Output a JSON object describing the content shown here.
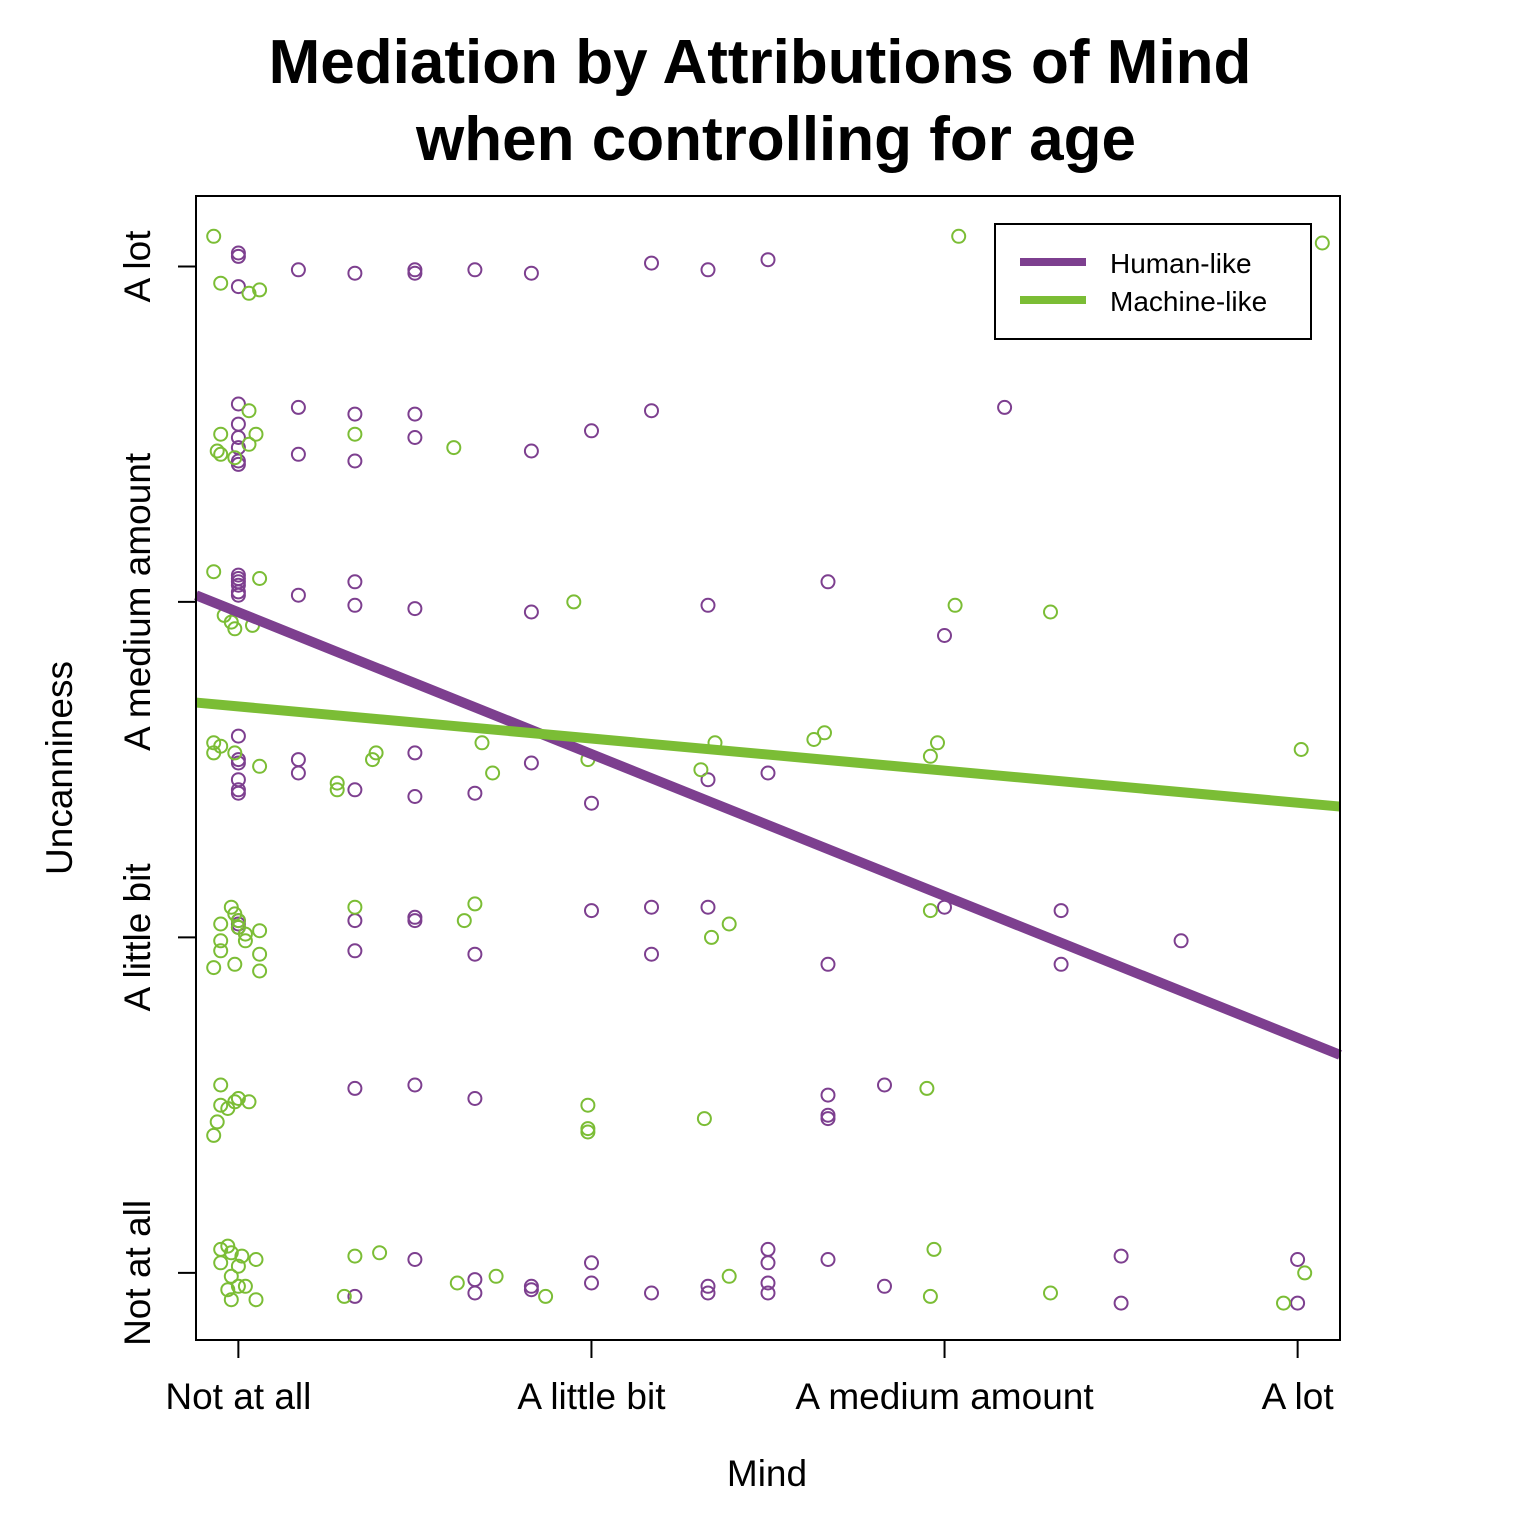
{
  "chart_data": {
    "type": "scatter",
    "title_lines": [
      "Mediation by Attributions of Mind",
      "when controlling for age"
    ],
    "xlabel": "Mind",
    "ylabel": "Uncanniness",
    "x_ticks": [
      "Not at all",
      "A little bit",
      "A medium amount",
      "A lot"
    ],
    "y_ticks": [
      "Not at all",
      "A little bit",
      "A medium amount",
      "A lot"
    ],
    "xlim": [
      0.88,
      4.12
    ],
    "ylim": [
      0.8,
      4.21
    ],
    "grid": false,
    "legend_position": "top-right",
    "colors": {
      "human": "#7d3f8f",
      "machine": "#7bbd35"
    },
    "series": [
      {
        "name": "Human-like",
        "fit_line": [
          [
            0.88,
            3.02
          ],
          [
            4.12,
            1.65
          ]
        ],
        "points": [
          [
            1.0,
            4.04
          ],
          [
            1.0,
            4.03
          ],
          [
            1.0,
            3.94
          ],
          [
            1.17,
            3.99
          ],
          [
            1.33,
            3.98
          ],
          [
            1.5,
            3.99
          ],
          [
            1.5,
            3.98
          ],
          [
            1.67,
            3.99
          ],
          [
            1.83,
            3.98
          ],
          [
            2.17,
            4.01
          ],
          [
            2.33,
            3.99
          ],
          [
            2.5,
            4.02
          ],
          [
            1.0,
            3.59
          ],
          [
            1.0,
            3.53
          ],
          [
            1.0,
            3.49
          ],
          [
            1.0,
            3.46
          ],
          [
            1.0,
            3.42
          ],
          [
            1.0,
            3.41
          ],
          [
            1.17,
            3.58
          ],
          [
            1.17,
            3.44
          ],
          [
            1.33,
            3.56
          ],
          [
            1.33,
            3.42
          ],
          [
            1.5,
            3.56
          ],
          [
            1.5,
            3.49
          ],
          [
            1.83,
            3.45
          ],
          [
            2.0,
            3.51
          ],
          [
            2.17,
            3.57
          ],
          [
            3.17,
            3.58
          ],
          [
            1.0,
            3.08
          ],
          [
            1.0,
            3.07
          ],
          [
            1.0,
            3.06
          ],
          [
            1.0,
            3.05
          ],
          [
            1.0,
            3.03
          ],
          [
            1.0,
            3.02
          ],
          [
            1.17,
            3.02
          ],
          [
            1.33,
            3.06
          ],
          [
            1.33,
            2.99
          ],
          [
            1.5,
            2.98
          ],
          [
            1.83,
            2.97
          ],
          [
            2.33,
            2.99
          ],
          [
            2.67,
            3.06
          ],
          [
            3.0,
            2.9
          ],
          [
            1.0,
            2.6
          ],
          [
            1.0,
            2.53
          ],
          [
            1.0,
            2.52
          ],
          [
            1.0,
            2.47
          ],
          [
            1.0,
            2.44
          ],
          [
            1.0,
            2.43
          ],
          [
            1.17,
            2.53
          ],
          [
            1.17,
            2.49
          ],
          [
            1.33,
            2.44
          ],
          [
            1.5,
            2.55
          ],
          [
            1.5,
            2.42
          ],
          [
            1.67,
            2.43
          ],
          [
            1.83,
            2.52
          ],
          [
            2.0,
            2.4
          ],
          [
            2.33,
            2.47
          ],
          [
            2.5,
            2.49
          ],
          [
            1.0,
            2.05
          ],
          [
            1.0,
            2.04
          ],
          [
            1.0,
            2.03
          ],
          [
            1.33,
            2.05
          ],
          [
            1.33,
            1.96
          ],
          [
            1.5,
            2.06
          ],
          [
            1.5,
            2.05
          ],
          [
            1.67,
            1.95
          ],
          [
            2.0,
            2.08
          ],
          [
            2.17,
            2.09
          ],
          [
            2.17,
            1.95
          ],
          [
            2.33,
            2.09
          ],
          [
            2.67,
            1.92
          ],
          [
            3.0,
            2.09
          ],
          [
            3.33,
            2.08
          ],
          [
            3.33,
            1.92
          ],
          [
            3.67,
            1.99
          ],
          [
            1.33,
            1.55
          ],
          [
            1.5,
            1.56
          ],
          [
            1.67,
            1.52
          ],
          [
            2.67,
            1.53
          ],
          [
            2.67,
            1.47
          ],
          [
            2.67,
            1.46
          ],
          [
            2.83,
            1.56
          ],
          [
            1.5,
            1.04
          ],
          [
            1.67,
            0.98
          ],
          [
            1.67,
            0.94
          ],
          [
            1.83,
            0.96
          ],
          [
            1.83,
            0.95
          ],
          [
            2.0,
            1.03
          ],
          [
            2.0,
            0.97
          ],
          [
            2.17,
            0.94
          ],
          [
            2.33,
            0.96
          ],
          [
            2.33,
            0.94
          ],
          [
            2.5,
            1.07
          ],
          [
            2.5,
            1.03
          ],
          [
            2.5,
            0.97
          ],
          [
            2.5,
            0.94
          ],
          [
            2.67,
            1.04
          ],
          [
            2.83,
            0.96
          ],
          [
            3.5,
            1.05
          ],
          [
            3.5,
            0.91
          ],
          [
            4.0,
            1.04
          ],
          [
            4.0,
            0.91
          ],
          [
            1.33,
            0.93
          ]
        ]
      },
      {
        "name": "Machine-like",
        "fit_line": [
          [
            0.88,
            2.7
          ],
          [
            4.12,
            2.39
          ]
        ],
        "points": [
          [
            0.93,
            4.09
          ],
          [
            0.95,
            3.95
          ],
          [
            1.03,
            3.92
          ],
          [
            1.06,
            3.93
          ],
          [
            3.04,
            4.09
          ],
          [
            4.07,
            4.07
          ],
          [
            0.95,
            3.5
          ],
          [
            0.94,
            3.45
          ],
          [
            0.95,
            3.44
          ],
          [
            0.99,
            3.43
          ],
          [
            1.03,
            3.57
          ],
          [
            1.03,
            3.47
          ],
          [
            1.05,
            3.5
          ],
          [
            1.33,
            3.5
          ],
          [
            1.61,
            3.46
          ],
          [
            0.93,
            3.09
          ],
          [
            0.96,
            2.96
          ],
          [
            0.98,
            2.94
          ],
          [
            0.99,
            2.92
          ],
          [
            1.04,
            2.93
          ],
          [
            1.06,
            3.07
          ],
          [
            1.95,
            3.0
          ],
          [
            3.03,
            2.99
          ],
          [
            3.3,
            2.97
          ],
          [
            0.93,
            2.58
          ],
          [
            0.93,
            2.55
          ],
          [
            0.95,
            2.57
          ],
          [
            0.99,
            2.55
          ],
          [
            1.06,
            2.51
          ],
          [
            1.28,
            2.46
          ],
          [
            1.28,
            2.44
          ],
          [
            1.38,
            2.53
          ],
          [
            1.39,
            2.55
          ],
          [
            1.69,
            2.58
          ],
          [
            1.72,
            2.49
          ],
          [
            1.99,
            2.53
          ],
          [
            2.31,
            2.5
          ],
          [
            2.35,
            2.58
          ],
          [
            2.63,
            2.59
          ],
          [
            2.66,
            2.61
          ],
          [
            2.96,
            2.54
          ],
          [
            2.98,
            2.58
          ],
          [
            4.01,
            2.56
          ],
          [
            0.98,
            2.09
          ],
          [
            0.99,
            2.07
          ],
          [
            1.0,
            2.05
          ],
          [
            1.0,
            2.03
          ],
          [
            1.02,
            2.01
          ],
          [
            1.06,
            2.02
          ],
          [
            0.95,
            2.04
          ],
          [
            0.95,
            1.99
          ],
          [
            0.95,
            1.96
          ],
          [
            0.93,
            1.91
          ],
          [
            0.99,
            1.92
          ],
          [
            1.02,
            1.99
          ],
          [
            1.06,
            1.95
          ],
          [
            1.06,
            1.9
          ],
          [
            1.33,
            2.09
          ],
          [
            1.64,
            2.05
          ],
          [
            1.67,
            2.1
          ],
          [
            2.34,
            2.0
          ],
          [
            2.39,
            2.04
          ],
          [
            2.96,
            2.08
          ],
          [
            0.95,
            1.56
          ],
          [
            0.95,
            1.5
          ],
          [
            0.99,
            1.51
          ],
          [
            1.0,
            1.52
          ],
          [
            1.03,
            1.51
          ],
          [
            0.97,
            1.49
          ],
          [
            0.94,
            1.45
          ],
          [
            0.93,
            1.41
          ],
          [
            1.99,
            1.5
          ],
          [
            1.99,
            1.43
          ],
          [
            1.99,
            1.42
          ],
          [
            2.32,
            1.46
          ],
          [
            2.95,
            1.55
          ],
          [
            0.97,
            1.08
          ],
          [
            0.95,
            1.07
          ],
          [
            0.98,
            1.06
          ],
          [
            1.01,
            1.05
          ],
          [
            1.05,
            1.04
          ],
          [
            0.95,
            1.03
          ],
          [
            1.0,
            1.02
          ],
          [
            0.98,
            0.99
          ],
          [
            1.02,
            0.96
          ],
          [
            0.97,
            0.95
          ],
          [
            0.98,
            0.92
          ],
          [
            1.05,
            0.92
          ],
          [
            1.33,
            1.05
          ],
          [
            1.4,
            1.06
          ],
          [
            1.62,
            0.97
          ],
          [
            1.73,
            0.99
          ],
          [
            1.87,
            0.93
          ],
          [
            2.39,
            0.99
          ],
          [
            2.97,
            1.07
          ],
          [
            2.96,
            0.93
          ],
          [
            3.3,
            0.94
          ],
          [
            3.96,
            0.91
          ],
          [
            1.3,
            0.93
          ],
          [
            4.02,
            1.0
          ],
          [
            1.0,
            0.96
          ]
        ]
      }
    ]
  }
}
